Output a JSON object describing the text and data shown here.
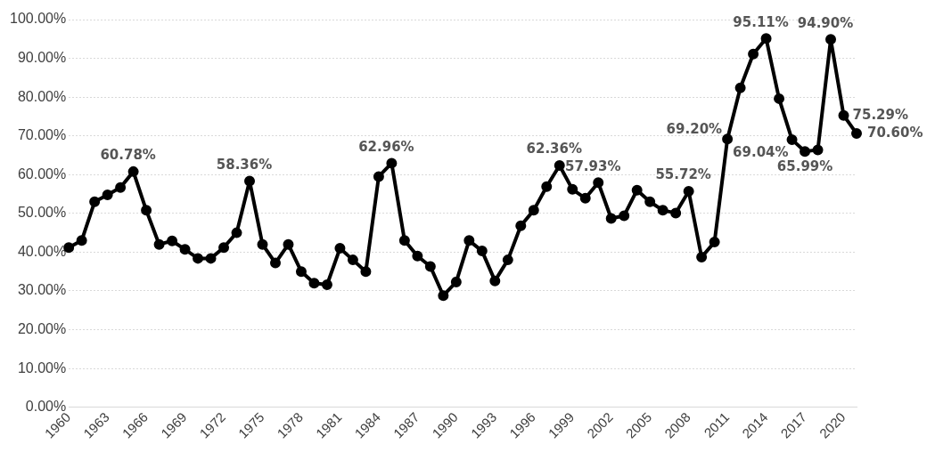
{
  "chart_data": {
    "type": "line",
    "categories": [
      "1960",
      null,
      null,
      "1963",
      null,
      null,
      "1966",
      null,
      null,
      "1969",
      null,
      null,
      "1972",
      null,
      null,
      "1975",
      null,
      null,
      "1978",
      null,
      null,
      "1981",
      null,
      null,
      "1984",
      null,
      null,
      "1987",
      null,
      null,
      "1990",
      null,
      null,
      "1993",
      null,
      null,
      "1996",
      null,
      null,
      "1999",
      null,
      null,
      "2002",
      null,
      null,
      "2005",
      null,
      null,
      "2008",
      null,
      null,
      "2011",
      null,
      null,
      "2014",
      null,
      null,
      "2017",
      null,
      null,
      "2020",
      null
    ],
    "series": [
      {
        "color": "#000000",
        "values": [
          41.2,
          43,
          53,
          54.8,
          56.7,
          60.78,
          50.8,
          42,
          42.9,
          40.7,
          38.4,
          38.4,
          41.2,
          45,
          58.36,
          42,
          37.2,
          42,
          35,
          32,
          31.6,
          41,
          38,
          35,
          59.5,
          62.96,
          43,
          39,
          36.3,
          28.8,
          32.3,
          43,
          40.3,
          32.6,
          38,
          46.8,
          50.8,
          56.9,
          62.36,
          56.2,
          53.9,
          57.93,
          48.7,
          49.4,
          56,
          53,
          50.8,
          50.1,
          55.72,
          38.7,
          42.6,
          69.2,
          82.4,
          91.1,
          95.11,
          79.6,
          69.04,
          65.99,
          66.4,
          94.9,
          75.29,
          70.6
        ],
        "value_labels": [
          null,
          null,
          null,
          null,
          null,
          "60.78%",
          null,
          null,
          null,
          null,
          null,
          null,
          null,
          null,
          "58.36%",
          null,
          null,
          null,
          null,
          null,
          null,
          null,
          null,
          null,
          null,
          "62.96%",
          null,
          null,
          null,
          null,
          null,
          null,
          null,
          null,
          null,
          null,
          null,
          null,
          "62.36%",
          null,
          null,
          "57.93%",
          null,
          null,
          null,
          null,
          null,
          null,
          "55.72%",
          null,
          null,
          "69.20%",
          null,
          null,
          "95.11%",
          null,
          "69.04%",
          "65.99%",
          null,
          "94.90%",
          "75.29%",
          "70.60%"
        ]
      }
    ],
    "ylim": [
      0,
      100
    ],
    "yticks": [
      {
        "value": 0,
        "label": "0.00%"
      },
      {
        "value": 10,
        "label": "10.00%"
      },
      {
        "value": 20,
        "label": "20.00%"
      },
      {
        "value": 30,
        "label": "30.00%"
      },
      {
        "value": 40,
        "label": "40.00%"
      },
      {
        "value": 50,
        "label": "50.00%"
      },
      {
        "value": 60,
        "label": "60.00%"
      },
      {
        "value": 70,
        "label": "70.00%"
      },
      {
        "value": 80,
        "label": "80.00%"
      },
      {
        "value": 90,
        "label": "90.00%"
      },
      {
        "value": 100,
        "label": "100.00%"
      }
    ],
    "grid": "y",
    "legend": false,
    "marker": "circle",
    "line_style": "solid"
  }
}
